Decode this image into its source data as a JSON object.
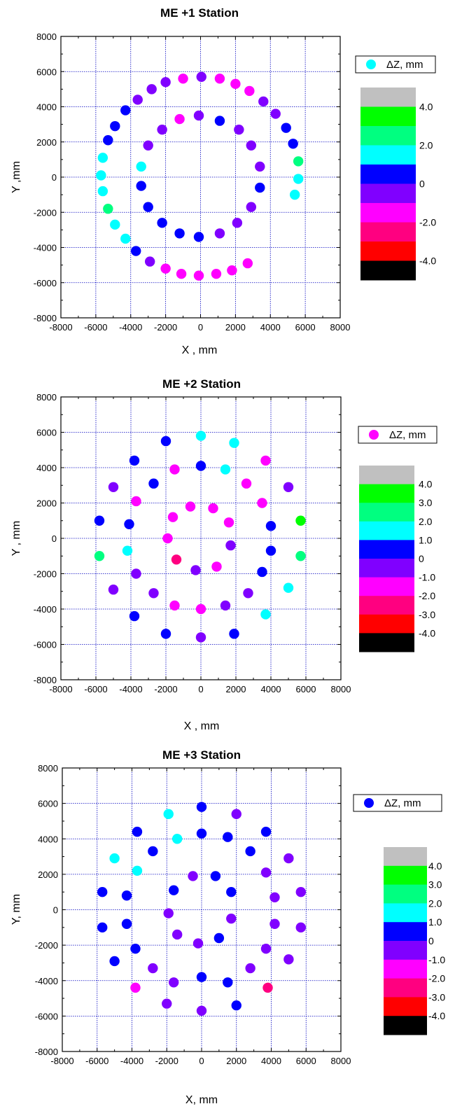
{
  "chart_data": [
    {
      "type": "scatter",
      "title": "ME +1 Station",
      "xlabel": "X , mm",
      "ylabel": "Y ,mm",
      "xlim": [
        -8000,
        8000
      ],
      "ylim": [
        -8000,
        8000
      ],
      "xticks": [
        "-8000",
        "-6000",
        "-4000",
        "-2000",
        "0",
        "2000",
        "4000",
        "6000",
        "8000"
      ],
      "yticks": [
        "-8000",
        "-6000",
        "-4000",
        "-2000",
        "0",
        "2000",
        "4000",
        "6000",
        "8000"
      ],
      "grid": true,
      "legend": {
        "label": "ΔZ, mm",
        "marker_color": "#00ffff",
        "position": "top-right"
      },
      "colorbar": {
        "colors": [
          "#c0c0c0",
          "#00ff00",
          "#00ff80",
          "#00ffff",
          "#0000ff",
          "#8000ff",
          "#ff00ff",
          "#ff0080",
          "#ff0000",
          "#000000"
        ],
        "labels": [
          "4.0",
          "2.0",
          "0",
          "-2.0",
          "-4.0"
        ],
        "label_positions": [
          1,
          3,
          5,
          7,
          9
        ]
      },
      "points": [
        {
          "x": -1000,
          "y": 5600,
          "c": "#ff00ff"
        },
        {
          "x": 50,
          "y": 5700,
          "c": "#8000ff"
        },
        {
          "x": 1100,
          "y": 5600,
          "c": "#ff00ff"
        },
        {
          "x": 2000,
          "y": 5300,
          "c": "#ff00ff"
        },
        {
          "x": 2800,
          "y": 4900,
          "c": "#ff00ff"
        },
        {
          "x": 3600,
          "y": 4300,
          "c": "#8000ff"
        },
        {
          "x": 4300,
          "y": 3600,
          "c": "#8000ff"
        },
        {
          "x": 4900,
          "y": 2800,
          "c": "#0000ff"
        },
        {
          "x": 5300,
          "y": 1900,
          "c": "#0000ff"
        },
        {
          "x": 5600,
          "y": 900,
          "c": "#00ff80"
        },
        {
          "x": 5600,
          "y": -100,
          "c": "#00ffff"
        },
        {
          "x": 5400,
          "y": -1000,
          "c": "#00ffff"
        },
        {
          "x": -2000,
          "y": 5400,
          "c": "#8000ff"
        },
        {
          "x": -2800,
          "y": 5000,
          "c": "#8000ff"
        },
        {
          "x": -3600,
          "y": 4400,
          "c": "#8000ff"
        },
        {
          "x": -4300,
          "y": 3800,
          "c": "#0000ff"
        },
        {
          "x": -4900,
          "y": 2900,
          "c": "#0000ff"
        },
        {
          "x": -5300,
          "y": 2100,
          "c": "#0000ff"
        },
        {
          "x": -5600,
          "y": 1100,
          "c": "#00ffff"
        },
        {
          "x": -5700,
          "y": 100,
          "c": "#00ffff"
        },
        {
          "x": -5600,
          "y": -800,
          "c": "#00ffff"
        },
        {
          "x": -5300,
          "y": -1800,
          "c": "#00ff80"
        },
        {
          "x": -4900,
          "y": -2700,
          "c": "#00ffff"
        },
        {
          "x": -4300,
          "y": -3500,
          "c": "#00ffff"
        },
        {
          "x": -3700,
          "y": -4200,
          "c": "#0000ff"
        },
        {
          "x": -2900,
          "y": -4800,
          "c": "#8000ff"
        },
        {
          "x": -2000,
          "y": -5200,
          "c": "#ff00ff"
        },
        {
          "x": -1100,
          "y": -5500,
          "c": "#ff00ff"
        },
        {
          "x": -100,
          "y": -5600,
          "c": "#ff00ff"
        },
        {
          "x": 900,
          "y": -5500,
          "c": "#ff00ff"
        },
        {
          "x": 1800,
          "y": -5300,
          "c": "#ff00ff"
        },
        {
          "x": 2700,
          "y": -4900,
          "c": "#ff00ff"
        },
        {
          "x": -1200,
          "y": 3300,
          "c": "#ff00ff"
        },
        {
          "x": -100,
          "y": 3500,
          "c": "#8000ff"
        },
        {
          "x": 1100,
          "y": 3200,
          "c": "#0000ff"
        },
        {
          "x": 2200,
          "y": 2700,
          "c": "#8000ff"
        },
        {
          "x": 2900,
          "y": 1800,
          "c": "#8000ff"
        },
        {
          "x": 3400,
          "y": 600,
          "c": "#8000ff"
        },
        {
          "x": 3400,
          "y": -600,
          "c": "#0000ff"
        },
        {
          "x": 2900,
          "y": -1700,
          "c": "#8000ff"
        },
        {
          "x": 2100,
          "y": -2600,
          "c": "#8000ff"
        },
        {
          "x": 1100,
          "y": -3200,
          "c": "#8000ff"
        },
        {
          "x": -100,
          "y": -3400,
          "c": "#0000ff"
        },
        {
          "x": -1200,
          "y": -3200,
          "c": "#0000ff"
        },
        {
          "x": -2200,
          "y": -2600,
          "c": "#0000ff"
        },
        {
          "x": -3000,
          "y": -1700,
          "c": "#0000ff"
        },
        {
          "x": -3400,
          "y": -500,
          "c": "#0000ff"
        },
        {
          "x": -3400,
          "y": 600,
          "c": "#00ffff"
        },
        {
          "x": -3000,
          "y": 1800,
          "c": "#8000ff"
        },
        {
          "x": -2200,
          "y": 2700,
          "c": "#8000ff"
        }
      ]
    },
    {
      "type": "scatter",
      "title": "ME +2  Station",
      "xlabel": "X , mm",
      "ylabel": "Y , mm",
      "xlim": [
        -8000,
        8000
      ],
      "ylim": [
        -8000,
        8000
      ],
      "xticks": [
        "-8000",
        "-6000",
        "-4000",
        "-2000",
        "0",
        "2000",
        "4000",
        "6000",
        "8000"
      ],
      "yticks": [
        "-8000",
        "-6000",
        "-4000",
        "-2000",
        "0",
        "2000",
        "4000",
        "6000",
        "8000"
      ],
      "grid": true,
      "legend": {
        "label": "ΔZ, mm",
        "marker_color": "#ff00ff",
        "position": "top-right"
      },
      "colorbar": {
        "colors": [
          "#c0c0c0",
          "#00ff00",
          "#00ff80",
          "#00ffff",
          "#0000ff",
          "#8000ff",
          "#ff00ff",
          "#ff0080",
          "#ff0000",
          "#000000"
        ],
        "labels": [
          "4.0",
          "3.0",
          "2.0",
          "1.0",
          "0",
          "-1.0",
          "-2.0",
          "-3.0",
          "-4.0"
        ],
        "label_positions": [
          1,
          2,
          3,
          4,
          5,
          6,
          7,
          8,
          9
        ]
      },
      "points": [
        {
          "x": -2000,
          "y": 5500,
          "c": "#0000ff"
        },
        {
          "x": 0,
          "y": 5800,
          "c": "#00ffff"
        },
        {
          "x": 1900,
          "y": 5400,
          "c": "#00ffff"
        },
        {
          "x": 3700,
          "y": 4400,
          "c": "#ff00ff"
        },
        {
          "x": 5000,
          "y": 2900,
          "c": "#8000ff"
        },
        {
          "x": 5700,
          "y": 1000,
          "c": "#00ff00"
        },
        {
          "x": 5700,
          "y": -1000,
          "c": "#00ff80"
        },
        {
          "x": 5000,
          "y": -2800,
          "c": "#00ffff"
        },
        {
          "x": 3700,
          "y": -4300,
          "c": "#00ffff"
        },
        {
          "x": 1900,
          "y": -5400,
          "c": "#0000ff"
        },
        {
          "x": 0,
          "y": -5600,
          "c": "#8000ff"
        },
        {
          "x": -2000,
          "y": -5400,
          "c": "#0000ff"
        },
        {
          "x": -3800,
          "y": -4400,
          "c": "#0000ff"
        },
        {
          "x": -5000,
          "y": -2900,
          "c": "#8000ff"
        },
        {
          "x": -5800,
          "y": -1000,
          "c": "#00ff80"
        },
        {
          "x": -5800,
          "y": 1000,
          "c": "#0000ff"
        },
        {
          "x": -5000,
          "y": 2900,
          "c": "#8000ff"
        },
        {
          "x": -3800,
          "y": 4400,
          "c": "#0000ff"
        },
        {
          "x": -1500,
          "y": 3900,
          "c": "#ff00ff"
        },
        {
          "x": 0,
          "y": 4100,
          "c": "#0000ff"
        },
        {
          "x": 1400,
          "y": 3900,
          "c": "#00ffff"
        },
        {
          "x": 2600,
          "y": 3100,
          "c": "#ff00ff"
        },
        {
          "x": 3500,
          "y": 2000,
          "c": "#ff00ff"
        },
        {
          "x": 4000,
          "y": 700,
          "c": "#0000ff"
        },
        {
          "x": 4000,
          "y": -700,
          "c": "#0000ff"
        },
        {
          "x": 3500,
          "y": -1900,
          "c": "#0000ff"
        },
        {
          "x": 2700,
          "y": -3100,
          "c": "#8000ff"
        },
        {
          "x": 1400,
          "y": -3800,
          "c": "#8000ff"
        },
        {
          "x": 0,
          "y": -4000,
          "c": "#ff00ff"
        },
        {
          "x": -1500,
          "y": -3800,
          "c": "#ff00ff"
        },
        {
          "x": -2700,
          "y": -3100,
          "c": "#8000ff"
        },
        {
          "x": -3700,
          "y": -2000,
          "c": "#8000ff"
        },
        {
          "x": -4200,
          "y": -700,
          "c": "#00ffff"
        },
        {
          "x": -4100,
          "y": 800,
          "c": "#0000ff"
        },
        {
          "x": -3700,
          "y": 2100,
          "c": "#ff00ff"
        },
        {
          "x": -2700,
          "y": 3100,
          "c": "#0000ff"
        },
        {
          "x": -1600,
          "y": 1200,
          "c": "#ff00ff"
        },
        {
          "x": -600,
          "y": 1800,
          "c": "#ff00ff"
        },
        {
          "x": 700,
          "y": 1700,
          "c": "#ff00ff"
        },
        {
          "x": 1600,
          "y": 900,
          "c": "#ff00ff"
        },
        {
          "x": 1700,
          "y": -400,
          "c": "#8000ff"
        },
        {
          "x": 900,
          "y": -1600,
          "c": "#ff00ff"
        },
        {
          "x": -300,
          "y": -1800,
          "c": "#8000ff"
        },
        {
          "x": -1400,
          "y": -1200,
          "c": "#ff0080"
        },
        {
          "x": -1900,
          "y": 0,
          "c": "#ff00ff"
        }
      ]
    },
    {
      "type": "scatter",
      "title": "ME +3 Station",
      "xlabel": "X, mm",
      "ylabel": "Y, mm",
      "xlim": [
        -8000,
        8000
      ],
      "ylim": [
        -8000,
        8000
      ],
      "xticks": [
        "-8000",
        "-6000",
        "-4000",
        "-2000",
        "0",
        "2000",
        "4000",
        "6000",
        "8000"
      ],
      "yticks": [
        "-8000",
        "-6000",
        "-4000",
        "-2000",
        "0",
        "2000",
        "4000",
        "6000",
        "8000"
      ],
      "grid": true,
      "legend": {
        "label": "ΔZ, mm",
        "marker_color": "#0000ff",
        "position": "top-right"
      },
      "colorbar": {
        "colors": [
          "#c0c0c0",
          "#00ff00",
          "#00ff80",
          "#00ffff",
          "#0000ff",
          "#8000ff",
          "#ff00ff",
          "#ff0080",
          "#ff0000",
          "#000000"
        ],
        "labels": [
          "4.0",
          "3.0",
          "2.0",
          "1.0",
          "0",
          "-1.0",
          "-2.0",
          "-3.0",
          "-4.0"
        ],
        "label_positions": [
          1,
          2,
          3,
          4,
          5,
          6,
          7,
          8,
          9
        ]
      },
      "points": [
        {
          "x": -1900,
          "y": 5400,
          "c": "#00ffff"
        },
        {
          "x": 0,
          "y": 5800,
          "c": "#0000ff"
        },
        {
          "x": 2000,
          "y": 5400,
          "c": "#8000ff"
        },
        {
          "x": 3700,
          "y": 4400,
          "c": "#0000ff"
        },
        {
          "x": 5000,
          "y": 2900,
          "c": "#8000ff"
        },
        {
          "x": 5700,
          "y": 1000,
          "c": "#8000ff"
        },
        {
          "x": 5700,
          "y": -1000,
          "c": "#8000ff"
        },
        {
          "x": 5000,
          "y": -2800,
          "c": "#8000ff"
        },
        {
          "x": 3800,
          "y": -4400,
          "c": "#ff0080"
        },
        {
          "x": 2000,
          "y": -5400,
          "c": "#0000ff"
        },
        {
          "x": 0,
          "y": -5700,
          "c": "#8000ff"
        },
        {
          "x": -2000,
          "y": -5300,
          "c": "#8000ff"
        },
        {
          "x": -3800,
          "y": -4400,
          "c": "#ff00ff"
        },
        {
          "x": -5000,
          "y": -2900,
          "c": "#0000ff"
        },
        {
          "x": -5700,
          "y": -1000,
          "c": "#0000ff"
        },
        {
          "x": -5700,
          "y": 1000,
          "c": "#0000ff"
        },
        {
          "x": -5000,
          "y": 2900,
          "c": "#00ffff"
        },
        {
          "x": -3700,
          "y": 4400,
          "c": "#0000ff"
        },
        {
          "x": -1400,
          "y": 4000,
          "c": "#00ffff"
        },
        {
          "x": 0,
          "y": 4300,
          "c": "#0000ff"
        },
        {
          "x": 1500,
          "y": 4100,
          "c": "#0000ff"
        },
        {
          "x": 2800,
          "y": 3300,
          "c": "#0000ff"
        },
        {
          "x": 3700,
          "y": 2100,
          "c": "#8000ff"
        },
        {
          "x": 4200,
          "y": 700,
          "c": "#8000ff"
        },
        {
          "x": 4200,
          "y": -800,
          "c": "#8000ff"
        },
        {
          "x": 3700,
          "y": -2200,
          "c": "#8000ff"
        },
        {
          "x": 2800,
          "y": -3300,
          "c": "#8000ff"
        },
        {
          "x": 1500,
          "y": -4100,
          "c": "#0000ff"
        },
        {
          "x": 0,
          "y": -3800,
          "c": "#0000ff"
        },
        {
          "x": -1600,
          "y": -4100,
          "c": "#8000ff"
        },
        {
          "x": -2800,
          "y": -3300,
          "c": "#8000ff"
        },
        {
          "x": -3800,
          "y": -2200,
          "c": "#0000ff"
        },
        {
          "x": -4300,
          "y": -800,
          "c": "#0000ff"
        },
        {
          "x": -4300,
          "y": 800,
          "c": "#0000ff"
        },
        {
          "x": -3700,
          "y": 2200,
          "c": "#00ffff"
        },
        {
          "x": -2800,
          "y": 3300,
          "c": "#0000ff"
        },
        {
          "x": -1600,
          "y": 1100,
          "c": "#0000ff"
        },
        {
          "x": -500,
          "y": 1900,
          "c": "#8000ff"
        },
        {
          "x": 800,
          "y": 1900,
          "c": "#0000ff"
        },
        {
          "x": 1700,
          "y": 1000,
          "c": "#0000ff"
        },
        {
          "x": 1700,
          "y": -500,
          "c": "#8000ff"
        },
        {
          "x": 1000,
          "y": -1600,
          "c": "#0000ff"
        },
        {
          "x": -200,
          "y": -1900,
          "c": "#8000ff"
        },
        {
          "x": -1400,
          "y": -1400,
          "c": "#8000ff"
        },
        {
          "x": -1900,
          "y": -200,
          "c": "#8000ff"
        }
      ]
    }
  ]
}
